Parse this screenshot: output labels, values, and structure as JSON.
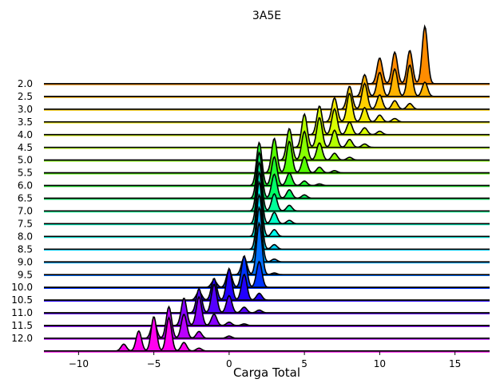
{
  "chart_data": {
    "type": "ridgeline",
    "title": "3A5E",
    "xlabel": "Carga Total",
    "ylabel": "",
    "xlim": [
      -12.3,
      17.3
    ],
    "x_ticks": [
      -10,
      -5,
      0,
      5,
      10,
      15
    ],
    "x_tick_labels": [
      "−10",
      "−5",
      "0",
      "5",
      "10",
      "15"
    ],
    "grid": false,
    "legend": "none",
    "series": [
      {
        "name": "2.0",
        "color": "#ff8c00",
        "peaks": [
          {
            "x": 13,
            "h": 1.0
          },
          {
            "x": 12,
            "h": 0.58
          },
          {
            "x": 11,
            "h": 0.55
          },
          {
            "x": 10,
            "h": 0.45
          }
        ]
      },
      {
        "name": "2.5",
        "color": "#ffb300",
        "peaks": [
          {
            "x": 12,
            "h": 0.55
          },
          {
            "x": 11,
            "h": 0.48
          },
          {
            "x": 10,
            "h": 0.42
          },
          {
            "x": 9,
            "h": 0.38
          },
          {
            "x": 13,
            "h": 0.25
          }
        ]
      },
      {
        "name": "3.0",
        "color": "#ffd000",
        "peaks": [
          {
            "x": 9,
            "h": 0.45
          },
          {
            "x": 8,
            "h": 0.4
          },
          {
            "x": 10,
            "h": 0.25
          },
          {
            "x": 11,
            "h": 0.15
          },
          {
            "x": 12,
            "h": 0.1
          }
        ]
      },
      {
        "name": "3.5",
        "color": "#f2ea00",
        "peaks": [
          {
            "x": 8,
            "h": 0.5
          },
          {
            "x": 7,
            "h": 0.42
          },
          {
            "x": 9,
            "h": 0.25
          },
          {
            "x": 10,
            "h": 0.12
          },
          {
            "x": 11,
            "h": 0.06
          }
        ]
      },
      {
        "name": "4.0",
        "color": "#d8ff00",
        "peaks": [
          {
            "x": 6,
            "h": 0.5
          },
          {
            "x": 7,
            "h": 0.45
          },
          {
            "x": 8,
            "h": 0.22
          },
          {
            "x": 9,
            "h": 0.12
          },
          {
            "x": 10,
            "h": 0.06
          }
        ]
      },
      {
        "name": "4.5",
        "color": "#b4ff00",
        "peaks": [
          {
            "x": 5,
            "h": 0.58
          },
          {
            "x": 6,
            "h": 0.52
          },
          {
            "x": 7,
            "h": 0.3
          },
          {
            "x": 8,
            "h": 0.14
          },
          {
            "x": 9,
            "h": 0.06
          }
        ]
      },
      {
        "name": "5.0",
        "color": "#88ff00",
        "peaks": [
          {
            "x": 4,
            "h": 0.55
          },
          {
            "x": 5,
            "h": 0.5
          },
          {
            "x": 6,
            "h": 0.3
          },
          {
            "x": 7,
            "h": 0.12
          },
          {
            "x": 8,
            "h": 0.05
          }
        ]
      },
      {
        "name": "5.5",
        "color": "#55ff00",
        "peaks": [
          {
            "x": 3,
            "h": 0.6
          },
          {
            "x": 4,
            "h": 0.55
          },
          {
            "x": 5,
            "h": 0.28
          },
          {
            "x": 6,
            "h": 0.1
          },
          {
            "x": 7,
            "h": 0.04
          }
        ]
      },
      {
        "name": "6.0",
        "color": "#20ff30",
        "peaks": [
          {
            "x": 2,
            "h": 0.75
          },
          {
            "x": 3,
            "h": 0.5
          },
          {
            "x": 4,
            "h": 0.22
          },
          {
            "x": 5,
            "h": 0.08
          },
          {
            "x": 6,
            "h": 0.03
          }
        ]
      },
      {
        "name": "6.5",
        "color": "#00ff66",
        "peaks": [
          {
            "x": 2,
            "h": 0.8
          },
          {
            "x": 3,
            "h": 0.42
          },
          {
            "x": 4,
            "h": 0.15
          },
          {
            "x": 5,
            "h": 0.06
          }
        ]
      },
      {
        "name": "7.0",
        "color": "#00ff99",
        "peaks": [
          {
            "x": 2,
            "h": 0.85
          },
          {
            "x": 3,
            "h": 0.3
          },
          {
            "x": 4,
            "h": 0.1
          }
        ]
      },
      {
        "name": "7.5",
        "color": "#00ffc8",
        "peaks": [
          {
            "x": 2,
            "h": 0.9
          },
          {
            "x": 3,
            "h": 0.2
          },
          {
            "x": 4,
            "h": 0.06
          }
        ]
      },
      {
        "name": "8.0",
        "color": "#00ffee",
        "peaks": [
          {
            "x": 2,
            "h": 0.95
          },
          {
            "x": 3,
            "h": 0.12
          }
        ]
      },
      {
        "name": "8.5",
        "color": "#00d8ff",
        "peaks": [
          {
            "x": 2,
            "h": 0.95
          },
          {
            "x": 3,
            "h": 0.08
          }
        ]
      },
      {
        "name": "9.0",
        "color": "#00a8ff",
        "peaks": [
          {
            "x": 2,
            "h": 0.95
          },
          {
            "x": 3,
            "h": 0.05
          }
        ]
      },
      {
        "name": "9.5",
        "color": "#0070ff",
        "peaks": [
          {
            "x": 2,
            "h": 0.9
          },
          {
            "x": 1,
            "h": 0.3
          },
          {
            "x": 3,
            "h": 0.03
          }
        ]
      },
      {
        "name": "10.0",
        "color": "#0033ff",
        "peaks": [
          {
            "x": 1,
            "h": 0.55
          },
          {
            "x": 2,
            "h": 0.45
          },
          {
            "x": 0,
            "h": 0.3
          },
          {
            "x": -1,
            "h": 0.12
          }
        ]
      },
      {
        "name": "10.5",
        "color": "#2200ff",
        "peaks": [
          {
            "x": 0,
            "h": 0.55
          },
          {
            "x": 1,
            "h": 0.45
          },
          {
            "x": -1,
            "h": 0.38
          },
          {
            "x": 2,
            "h": 0.12
          },
          {
            "x": -2,
            "h": 0.15
          }
        ]
      },
      {
        "name": "11.0",
        "color": "#5500ff",
        "peaks": [
          {
            "x": -1,
            "h": 0.5
          },
          {
            "x": -2,
            "h": 0.42
          },
          {
            "x": 0,
            "h": 0.3
          },
          {
            "x": 1,
            "h": 0.1
          },
          {
            "x": 2,
            "h": 0.05
          }
        ]
      },
      {
        "name": "11.5",
        "color": "#8800ff",
        "peaks": [
          {
            "x": -2,
            "h": 0.5
          },
          {
            "x": -3,
            "h": 0.48
          },
          {
            "x": -1,
            "h": 0.2
          },
          {
            "x": 0,
            "h": 0.06
          },
          {
            "x": 1,
            "h": 0.03
          }
        ]
      },
      {
        "name": "12.0",
        "color": "#bb00ff",
        "peaks": [
          {
            "x": -4,
            "h": 0.55
          },
          {
            "x": -3,
            "h": 0.42
          },
          {
            "x": -5,
            "h": 0.3
          },
          {
            "x": -2,
            "h": 0.12
          },
          {
            "x": 0,
            "h": 0.04
          }
        ]
      },
      {
        "name": "",
        "color": "#ff00ee",
        "peaks": [
          {
            "x": -5,
            "h": 0.6
          },
          {
            "x": -4,
            "h": 0.58
          },
          {
            "x": -6,
            "h": 0.35
          },
          {
            "x": -3,
            "h": 0.15
          },
          {
            "x": -7,
            "h": 0.12
          },
          {
            "x": -2,
            "h": 0.05
          }
        ]
      }
    ]
  }
}
